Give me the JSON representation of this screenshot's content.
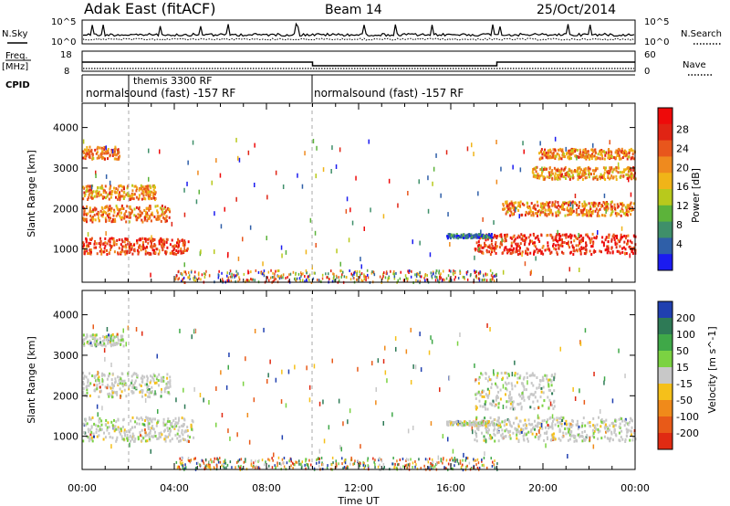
{
  "header": {
    "station": "Adak East (fitACF)",
    "beam": "Beam 14",
    "date": "25/Oct/2014"
  },
  "strip": {
    "nsky_label": "N.Sky",
    "nsearch_label": "N.Search",
    "nsky_ticks": [
      "10^5",
      "10^0"
    ],
    "nsearch_ticks": [
      "10^5",
      "10^0"
    ],
    "freq_label": "Freq.",
    "freq_unit": "[MHz]",
    "freq_ticks": [
      "18",
      "8"
    ],
    "nave_label": "Nave",
    "nave_ticks": [
      "60",
      "0"
    ],
    "cpid_label": "CPID",
    "cpid_segments": [
      {
        "label": "normalsound (fast) -157 RF",
        "start_hour": 0
      },
      {
        "label": "themis 3300 RF",
        "start_hour": 2
      },
      {
        "label": "normalsound (fast) -157 RF",
        "start_hour": 10
      }
    ],
    "freq_levels": [
      {
        "start_hour": 0,
        "end_hour": 10,
        "mhz": 13.0
      },
      {
        "start_hour": 10,
        "end_hour": 18,
        "mhz": 11.0
      },
      {
        "start_hour": 18,
        "end_hour": 24,
        "mhz": 13.0
      }
    ]
  },
  "chart_data": [
    {
      "type": "heatmap",
      "panel": "power",
      "ylabel": "Slant Range [km]",
      "xlabel": "Time UT",
      "y_ticks": [
        "1000",
        "2000",
        "3000",
        "4000"
      ],
      "x_ticks": [
        "00:00",
        "04:00",
        "08:00",
        "12:00",
        "16:00",
        "20:00",
        "00:00"
      ],
      "xlim": [
        0,
        24
      ],
      "ylim": [
        180,
        4600
      ],
      "colorbar_label": "Power [dB]",
      "colorbar_ticks": [
        "4",
        "8",
        "12",
        "16",
        "20",
        "24",
        "28"
      ],
      "colorbar_colors": [
        "#1b1bf0",
        "#2f5fa8",
        "#3f8f6a",
        "#5cb33a",
        "#b8c91c",
        "#f0b418",
        "#ef8a1e",
        "#e8561c",
        "#e02414",
        "#ee0a0a"
      ],
      "echo_bands": [
        {
          "t0": 0,
          "t1": 4.6,
          "r0": 900,
          "r1": 1300,
          "level": 0.85
        },
        {
          "t0": 0,
          "t1": 3.8,
          "r0": 1700,
          "r1": 2100,
          "level": 0.7
        },
        {
          "t0": 0,
          "t1": 3.2,
          "r0": 2250,
          "r1": 2600,
          "level": 0.65
        },
        {
          "t0": 0,
          "t1": 1.6,
          "r0": 3250,
          "r1": 3550,
          "level": 0.7
        },
        {
          "t0": 17.0,
          "t1": 24,
          "r0": 900,
          "r1": 1400,
          "level": 0.9
        },
        {
          "t0": 18.2,
          "t1": 24,
          "r0": 1850,
          "r1": 2200,
          "level": 0.7
        },
        {
          "t0": 19.5,
          "t1": 24,
          "r0": 2750,
          "r1": 3050,
          "level": 0.65
        },
        {
          "t0": 19.8,
          "t1": 24,
          "r0": 3250,
          "r1": 3500,
          "level": 0.7
        },
        {
          "t0": 15.8,
          "t1": 17.8,
          "r0": 1300,
          "r1": 1400,
          "level": 0.15
        }
      ]
    },
    {
      "type": "heatmap",
      "panel": "velocity",
      "ylabel": "Slant Range [km]",
      "xlabel": "Time UT",
      "y_ticks": [
        "1000",
        "2000",
        "3000",
        "4000"
      ],
      "x_ticks": [
        "00:00",
        "04:00",
        "08:00",
        "12:00",
        "16:00",
        "20:00",
        "00:00"
      ],
      "xlim": [
        0,
        24
      ],
      "ylim": [
        180,
        4600
      ],
      "colorbar_label": "Velocity [m s^-1]",
      "colorbar_ticks": [
        "200",
        "100",
        "50",
        "15",
        "-15",
        "-50",
        "-100",
        "-200"
      ],
      "colorbar_colors": [
        "#2040b0",
        "#2e7a56",
        "#3fa848",
        "#7bd242",
        "#c8c8c8",
        "#f5c01a",
        "#f08a1a",
        "#e85a18",
        "#e02a12"
      ],
      "echo_bands": [
        {
          "t0": 0,
          "t1": 4.8,
          "r0": 900,
          "r1": 1500,
          "level": 0.5
        },
        {
          "t0": 0,
          "t1": 3.8,
          "r0": 2000,
          "r1": 2600,
          "level": 0.5
        },
        {
          "t0": 0,
          "t1": 1.8,
          "r0": 3250,
          "r1": 3550,
          "level": 0.5
        },
        {
          "t0": 17.0,
          "t1": 24,
          "r0": 900,
          "r1": 1500,
          "level": 0.5
        },
        {
          "t0": 17.0,
          "t1": 20.5,
          "r0": 1700,
          "r1": 2600,
          "level": 0.3
        },
        {
          "t0": 15.8,
          "t1": 17.8,
          "r0": 1300,
          "r1": 1400,
          "level": 0.3
        }
      ]
    }
  ]
}
